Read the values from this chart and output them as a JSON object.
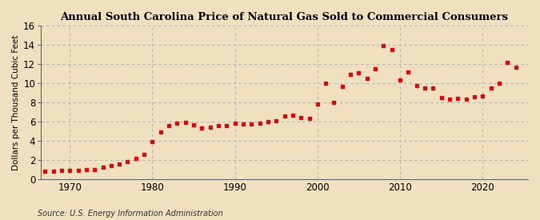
{
  "title": "Annual South Carolina Price of Natural Gas Sold to Commercial Consumers",
  "ylabel": "Dollars per Thousand Cubic Feet",
  "source": "Source: U.S. Energy Information Administration",
  "fig_bg_color": "#f0e0c0",
  "plot_bg_color": "#f0e0c0",
  "marker_color": "#cc1111",
  "grid_color": "#aaaaaa",
  "ylim": [
    0,
    16
  ],
  "yticks": [
    0,
    2,
    4,
    6,
    8,
    10,
    12,
    14,
    16
  ],
  "xlim": [
    1966.5,
    2025.5
  ],
  "xticks": [
    1970,
    1980,
    1990,
    2000,
    2010,
    2020
  ],
  "data": [
    [
      1967,
      0.82
    ],
    [
      1968,
      0.84
    ],
    [
      1969,
      0.85
    ],
    [
      1970,
      0.87
    ],
    [
      1971,
      0.92
    ],
    [
      1972,
      0.96
    ],
    [
      1973,
      1.0
    ],
    [
      1974,
      1.18
    ],
    [
      1975,
      1.38
    ],
    [
      1976,
      1.52
    ],
    [
      1977,
      1.78
    ],
    [
      1978,
      2.1
    ],
    [
      1979,
      2.55
    ],
    [
      1980,
      3.9
    ],
    [
      1981,
      4.88
    ],
    [
      1982,
      5.55
    ],
    [
      1983,
      5.78
    ],
    [
      1984,
      5.88
    ],
    [
      1985,
      5.65
    ],
    [
      1986,
      5.35
    ],
    [
      1987,
      5.42
    ],
    [
      1988,
      5.52
    ],
    [
      1989,
      5.55
    ],
    [
      1990,
      5.82
    ],
    [
      1991,
      5.72
    ],
    [
      1992,
      5.75
    ],
    [
      1993,
      5.85
    ],
    [
      1994,
      5.95
    ],
    [
      1995,
      6.08
    ],
    [
      1996,
      6.55
    ],
    [
      1997,
      6.62
    ],
    [
      1998,
      6.38
    ],
    [
      1999,
      6.35
    ],
    [
      2000,
      7.8
    ],
    [
      2001,
      10.02
    ],
    [
      2002,
      8.02
    ],
    [
      2003,
      9.65
    ],
    [
      2004,
      10.88
    ],
    [
      2005,
      11.05
    ],
    [
      2006,
      10.52
    ],
    [
      2007,
      11.52
    ],
    [
      2008,
      13.88
    ],
    [
      2009,
      13.52
    ],
    [
      2010,
      10.35
    ],
    [
      2011,
      11.18
    ],
    [
      2012,
      9.72
    ],
    [
      2013,
      9.45
    ],
    [
      2014,
      9.52
    ],
    [
      2015,
      8.52
    ],
    [
      2016,
      8.28
    ],
    [
      2017,
      8.42
    ],
    [
      2018,
      8.35
    ],
    [
      2019,
      8.55
    ],
    [
      2020,
      8.65
    ],
    [
      2021,
      9.48
    ],
    [
      2022,
      9.98
    ],
    [
      2023,
      12.18
    ],
    [
      2024,
      11.62
    ]
  ]
}
